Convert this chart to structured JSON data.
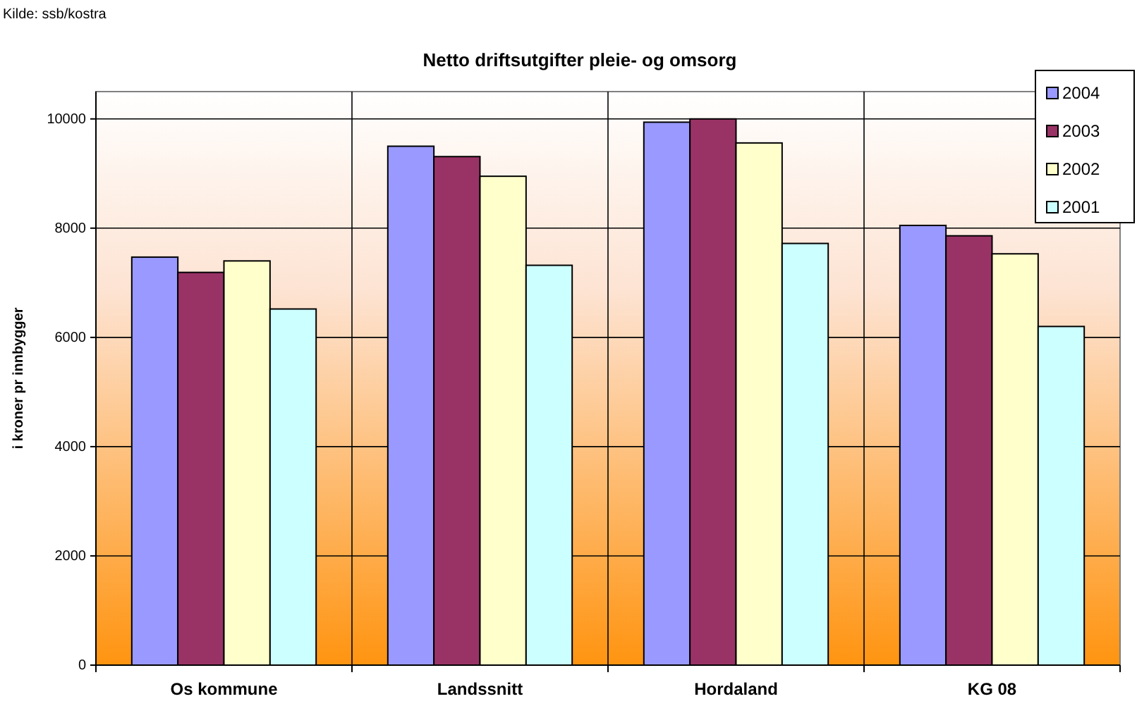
{
  "chart_data": {
    "type": "bar",
    "title": "Netto driftsutgifter pleie- og omsorg",
    "ylabel": "i kroner pr innbygger",
    "annotations": [
      "Kilde: ssb/kostra"
    ],
    "categories": [
      "Os kommune",
      "Landssnitt",
      "Hordaland",
      "KG 08"
    ],
    "series": [
      {
        "name": "2004",
        "color": "#9999ff",
        "values": [
          7470,
          9500,
          9940,
          8050
        ]
      },
      {
        "name": "2003",
        "color": "#993366",
        "values": [
          7190,
          9310,
          10000,
          7860
        ]
      },
      {
        "name": "2002",
        "color": "#ffffcc",
        "values": [
          7400,
          8950,
          9560,
          7530
        ]
      },
      {
        "name": "2001",
        "color": "#ccffff",
        "values": [
          6520,
          7320,
          7720,
          6200
        ]
      }
    ],
    "ylim": [
      0,
      10500
    ],
    "yticks": [
      0,
      2000,
      4000,
      6000,
      8000,
      10000
    ],
    "grid": true,
    "legend": "top right"
  }
}
